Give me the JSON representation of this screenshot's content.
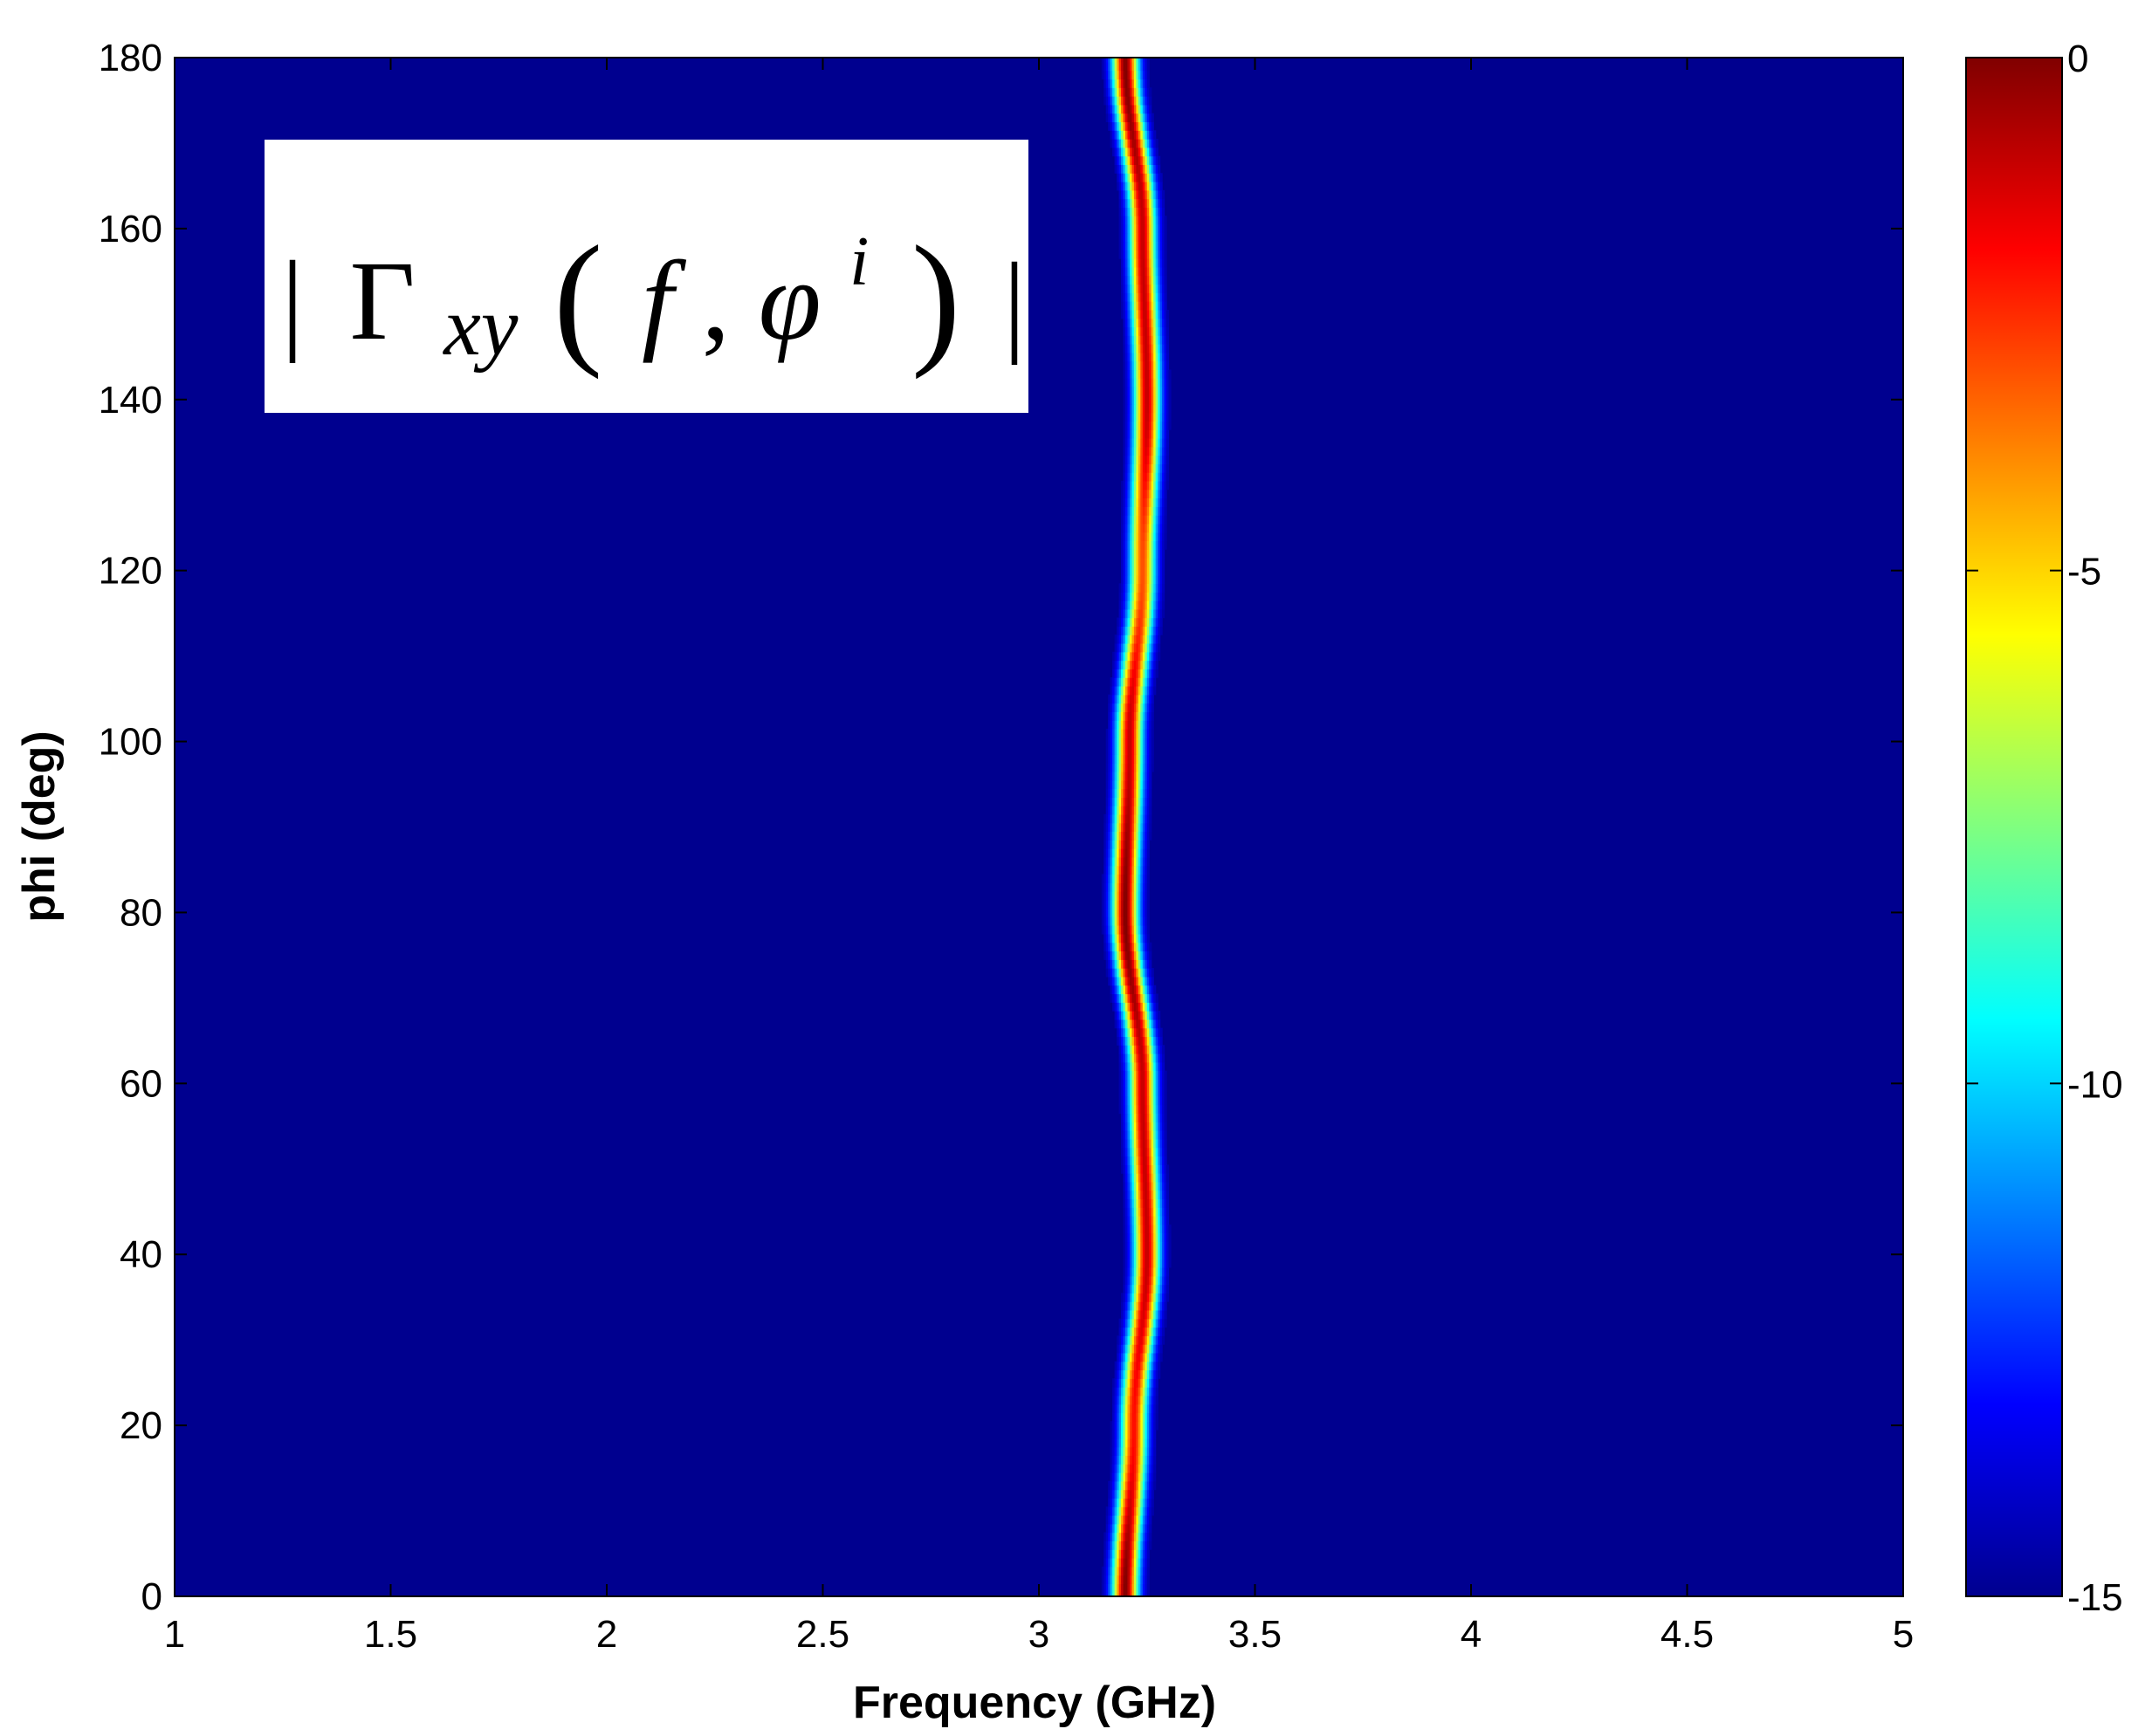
{
  "chart_data": {
    "type": "heatmap",
    "title": "",
    "xlabel": "Frequency (GHz)",
    "ylabel": "phi (deg)",
    "xlim": [
      1,
      5
    ],
    "ylim": [
      0,
      180
    ],
    "x_ticks": [
      1,
      1.5,
      2,
      2.5,
      3,
      3.5,
      4,
      4.5,
      5
    ],
    "x_tick_labels": [
      "1",
      "1.5",
      "2",
      "2.5",
      "3",
      "3.5",
      "4",
      "4.5",
      "5"
    ],
    "y_ticks": [
      0,
      20,
      40,
      60,
      80,
      100,
      120,
      140,
      160,
      180
    ],
    "y_tick_labels": [
      "0",
      "20",
      "40",
      "60",
      "80",
      "100",
      "120",
      "140",
      "160",
      "180"
    ],
    "colorbar": {
      "range": [
        -15,
        0
      ],
      "ticks": [
        0,
        -5,
        -10,
        -15
      ],
      "tick_labels": [
        "0",
        "-5",
        "-10",
        "-15"
      ],
      "colormap": "jet"
    },
    "background_value": -15,
    "resonance_ridge": {
      "description_value": "peak |Γxy| ≈ 0 near 3.2 GHz across all phi",
      "points": [
        {
          "phi": 0,
          "freq": 3.2,
          "peak": 0
        },
        {
          "phi": 20,
          "freq": 3.22,
          "peak": -2
        },
        {
          "phi": 40,
          "freq": 3.25,
          "peak": -1
        },
        {
          "phi": 60,
          "freq": 3.24,
          "peak": -1
        },
        {
          "phi": 80,
          "freq": 3.2,
          "peak": 0
        },
        {
          "phi": 100,
          "freq": 3.21,
          "peak": -1
        },
        {
          "phi": 120,
          "freq": 3.24,
          "peak": -3
        },
        {
          "phi": 140,
          "freq": 3.25,
          "peak": -1
        },
        {
          "phi": 160,
          "freq": 3.24,
          "peak": -1
        },
        {
          "phi": 180,
          "freq": 3.2,
          "peak": 0
        }
      ]
    },
    "annotation": {
      "bar_left": "|",
      "symbol": "Γ",
      "subscript": "xy",
      "paren_open": "(",
      "arg_f": "f",
      "comma": ",",
      "arg_phi": "φ",
      "superscript": "i",
      "paren_close": ")",
      "bar_right": "|"
    }
  }
}
